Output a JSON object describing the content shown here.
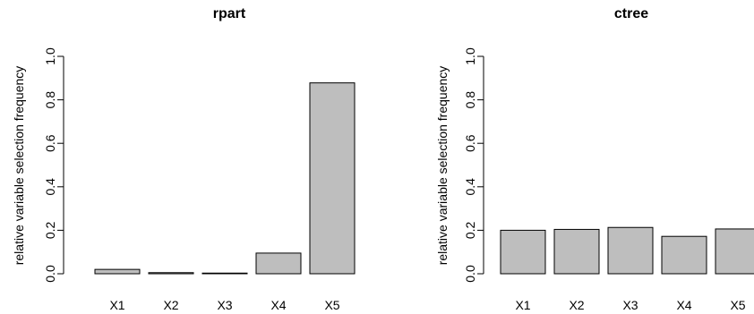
{
  "bar_color": "#bebebe",
  "chart_data": [
    {
      "type": "bar",
      "title": "rpart",
      "xlabel": "",
      "ylabel": "relative variable selection frequency",
      "ylim": [
        0,
        1.0
      ],
      "yticks": [
        "0.0",
        "0.2",
        "0.4",
        "0.6",
        "0.8",
        "1.0"
      ],
      "yticks_values": [
        0,
        0.2,
        0.4,
        0.6,
        0.8,
        1.0
      ],
      "categories": [
        "X1",
        "X2",
        "X3",
        "X4",
        "X5"
      ],
      "values": [
        0.02,
        0.005,
        0.003,
        0.095,
        0.878
      ],
      "grid": false
    },
    {
      "type": "bar",
      "title": "ctree",
      "xlabel": "",
      "ylabel": "relative variable selection frequency",
      "ylim": [
        0,
        1.0
      ],
      "yticks": [
        "0.0",
        "0.2",
        "0.4",
        "0.6",
        "0.8",
        "1.0"
      ],
      "yticks_values": [
        0,
        0.2,
        0.4,
        0.6,
        0.8,
        1.0
      ],
      "categories": [
        "X1",
        "X2",
        "X3",
        "X4",
        "X5"
      ],
      "values": [
        0.2,
        0.204,
        0.213,
        0.172,
        0.206
      ],
      "grid": false
    }
  ]
}
